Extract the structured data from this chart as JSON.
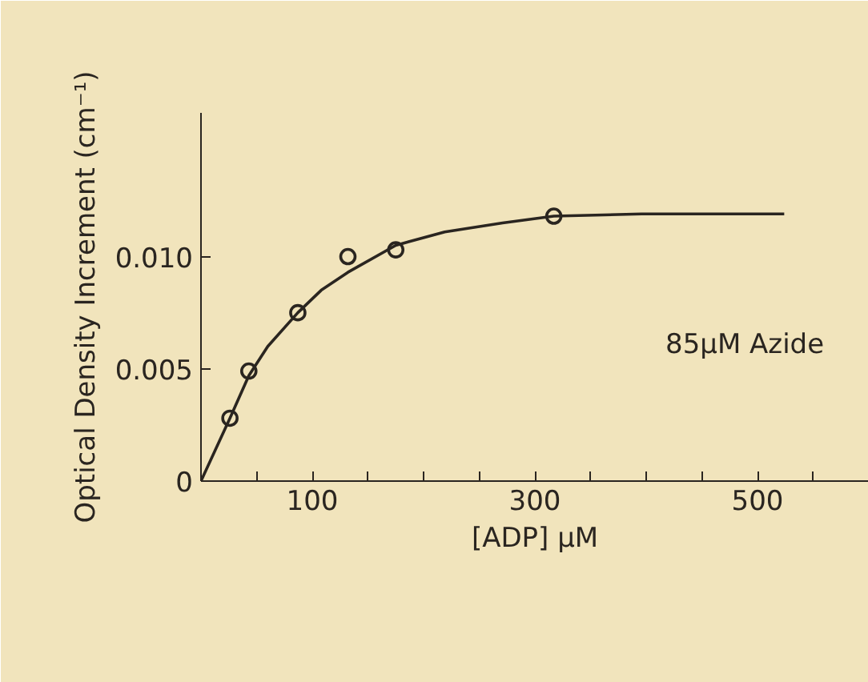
{
  "chart_data": {
    "type": "scatter",
    "xlabel": "[ADP] μM",
    "ylabel": "Optical Density Increment (cm⁻¹)",
    "xlim": [
      0,
      600
    ],
    "ylim": [
      0,
      0.0164
    ],
    "xticks": [
      {
        "value": 50,
        "label": null
      },
      100,
      {
        "value": 150,
        "label": null
      },
      {
        "value": 200,
        "label": null
      },
      {
        "value": 250,
        "label": null
      },
      300,
      {
        "value": 350,
        "label": null
      },
      {
        "value": 400,
        "label": null
      },
      {
        "value": 450,
        "label": null
      },
      500,
      {
        "value": 550,
        "label": null
      },
      {
        "value": 600,
        "label": null
      }
    ],
    "yticks": [
      {
        "value": 0,
        "label": "0"
      },
      {
        "value": 0.005,
        "label": "0.005"
      },
      {
        "value": 0.01,
        "label": "0.010"
      }
    ],
    "grid": false,
    "annotations": [
      "85μM Azide"
    ],
    "series": [
      {
        "marker": "circle",
        "color": "#2a2520",
        "x": [
          26,
          43,
          87,
          132,
          175,
          317
        ],
        "values": [
          0.0028,
          0.0049,
          0.0075,
          0.01,
          0.0103,
          0.0118
        ]
      },
      {
        "type": "line",
        "line_style": "solid",
        "color": "#2a2520",
        "x": [
          0,
          26,
          43,
          60,
          87,
          108,
          132,
          175,
          219,
          271,
          317,
          396,
          524
        ],
        "values": [
          0,
          0.0028,
          0.0047,
          0.006,
          0.0075,
          0.0085,
          0.0093,
          0.0105,
          0.0111,
          0.0115,
          0.0118,
          0.0119,
          0.0119
        ]
      }
    ]
  }
}
